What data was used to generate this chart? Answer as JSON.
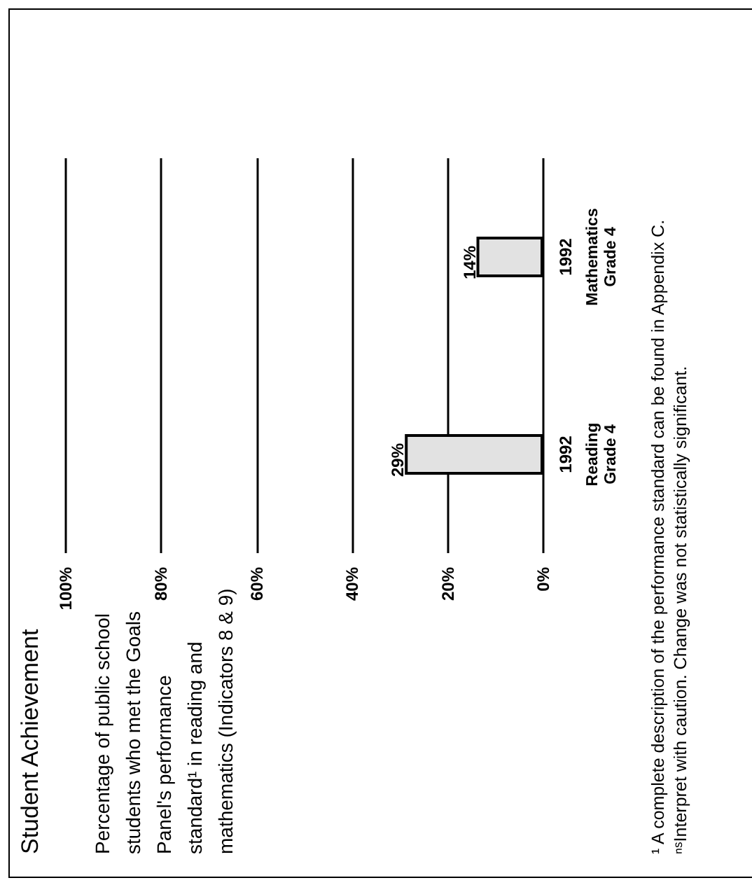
{
  "chart_data": {
    "type": "bar",
    "orientation": "horizontal",
    "title": "Student Achievement",
    "subtitle": "Percentage of public school students who met the Goals Panel's performance standard¹ in reading and mathematics (Indicators 8 & 9)",
    "categories": [
      "1992\nMathematics\nGrade 4",
      "1992\nReading\nGrade 4"
    ],
    "values": [
      14,
      29
    ],
    "value_labels": [
      "14%",
      "29%"
    ],
    "color": "#e2e2e2",
    "xlim": [
      100,
      0
    ],
    "xticks": [
      {
        "value": 0,
        "label": "0%"
      },
      {
        "value": 20,
        "label": "20%"
      },
      {
        "value": 40,
        "label": "40%"
      },
      {
        "value": 60,
        "label": "60%"
      },
      {
        "value": 80,
        "label": "80%"
      },
      {
        "value": 100,
        "label": "100%"
      }
    ],
    "grid": "x",
    "annotations": [
      "¹ A complete description of the performance standard can be found in Appendix C.",
      "ⁿˢInterpret with caution.  Change was not statistically significant."
    ]
  }
}
